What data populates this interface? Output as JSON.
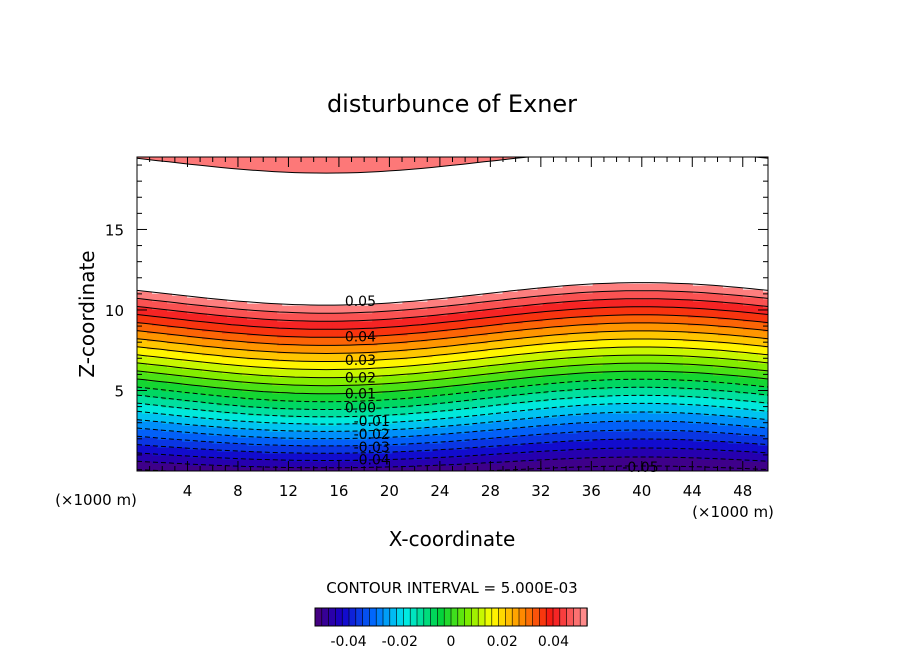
{
  "chart_data": {
    "type": "contour",
    "title": "disturbunce of Exner",
    "xlabel": "X-coordinate",
    "ylabel": "Z-coordinate",
    "x_unit": "(×1000 m)",
    "y_unit": "(×1000 m)",
    "xlim": [
      0,
      50
    ],
    "ylim": [
      0,
      19.5
    ],
    "x_ticks": [
      4,
      8,
      12,
      16,
      20,
      24,
      28,
      32,
      36,
      40,
      44,
      48
    ],
    "y_ticks": [
      5,
      10,
      15
    ],
    "contour_interval_label": "CONTOUR INTERVAL = 5.000E-03",
    "contour_labels": [
      {
        "text": "0.05",
        "x": 17.7,
        "z": 10.55
      },
      {
        "text": "0.04",
        "x": 17.7,
        "z": 8.35
      },
      {
        "text": "0.03",
        "x": 17.7,
        "z": 6.9
      },
      {
        "text": "0.02",
        "x": 17.7,
        "z": 5.8
      },
      {
        "text": "0.01",
        "x": 17.7,
        "z": 4.8
      },
      {
        "text": "0.00",
        "x": 17.7,
        "z": 3.95
      },
      {
        "text": "-0.01",
        "x": 18.6,
        "z": 3.1
      },
      {
        "text": "-0.02",
        "x": 18.6,
        "z": 2.3
      },
      {
        "text": "-0.03",
        "x": 18.6,
        "z": 1.5
      },
      {
        "text": "-0.04",
        "x": 18.6,
        "z": 0.7
      },
      {
        "text": "-0.05",
        "x": 39.9,
        "z": 0.25
      }
    ],
    "levels": [
      -0.055,
      -0.05,
      -0.045,
      -0.04,
      -0.035,
      -0.03,
      -0.025,
      -0.02,
      -0.015,
      -0.01,
      -0.005,
      0.0,
      0.005,
      0.01,
      0.015,
      0.02,
      0.025,
      0.03,
      0.035,
      0.04,
      0.045,
      0.05,
      0.055
    ],
    "colorbar": {
      "range": [
        -0.05,
        0.05
      ],
      "tick_values": [
        -0.04,
        -0.02,
        0,
        0.02,
        0.04
      ],
      "tick_labels": [
        "-0.04",
        "-0.02",
        "0",
        "0.02",
        "0.04"
      ]
    }
  }
}
